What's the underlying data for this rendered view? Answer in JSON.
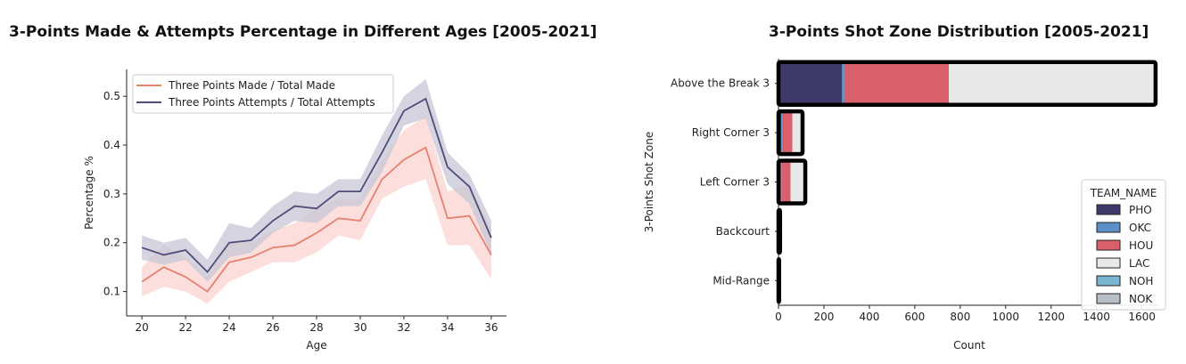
{
  "charts": {
    "left": {
      "title": "3-Points Made & Attempts Percentage in Different Ages [2005-2021]"
    },
    "right": {
      "title": "3-Points Shot Zone Distribution [2005-2021]"
    }
  },
  "colors": {
    "made": "#e8806f",
    "made_band": "#f9c4c0",
    "attempts": "#4f4d77",
    "attempts_band": "#c7c6d6",
    "PHO": "#3d3a6b",
    "OKC": "#5b8fc5",
    "HOU": "#d9606a",
    "LAC": "#e8e8e8",
    "NOH": "#79b4d1",
    "NOK": "#b9bfc6"
  },
  "chart_data": [
    {
      "type": "line",
      "title": "3-Points Made & Attempts Percentage in Different Ages [2005-2021]",
      "xlabel": "Age",
      "ylabel": "Percentage %",
      "xlim": [
        19.3,
        36.7
      ],
      "ylim": [
        0.05,
        0.555
      ],
      "xticks": [
        20,
        22,
        24,
        26,
        28,
        30,
        32,
        34,
        36
      ],
      "yticks": [
        0.1,
        0.2,
        0.3,
        0.4,
        0.5
      ],
      "legend_position": "top-left",
      "x": [
        20,
        21,
        22,
        23,
        24,
        25,
        26,
        27,
        28,
        29,
        30,
        31,
        32,
        33,
        34,
        35,
        36
      ],
      "series": [
        {
          "name": "Three Points Made / Total Made",
          "color_key": "made",
          "values": [
            0.12,
            0.15,
            0.13,
            0.1,
            0.16,
            0.17,
            0.19,
            0.195,
            0.22,
            0.25,
            0.245,
            0.33,
            0.37,
            0.395,
            0.25,
            0.255,
            0.175
          ],
          "ci_low": [
            0.09,
            0.11,
            0.1,
            0.075,
            0.12,
            0.14,
            0.16,
            0.16,
            0.18,
            0.215,
            0.205,
            0.29,
            0.315,
            0.33,
            0.195,
            0.195,
            0.125
          ],
          "ci_high": [
            0.15,
            0.195,
            0.17,
            0.13,
            0.2,
            0.2,
            0.225,
            0.24,
            0.27,
            0.29,
            0.29,
            0.37,
            0.43,
            0.46,
            0.305,
            0.32,
            0.225
          ]
        },
        {
          "name": "Three Points Attempts / Total Attempts",
          "color_key": "attempts",
          "values": [
            0.19,
            0.175,
            0.185,
            0.14,
            0.2,
            0.205,
            0.245,
            0.275,
            0.27,
            0.305,
            0.305,
            0.385,
            0.47,
            0.495,
            0.355,
            0.315,
            0.21
          ],
          "ci_low": [
            0.165,
            0.155,
            0.165,
            0.12,
            0.17,
            0.18,
            0.22,
            0.245,
            0.24,
            0.275,
            0.275,
            0.345,
            0.44,
            0.455,
            0.32,
            0.28,
            0.175
          ],
          "ci_high": [
            0.215,
            0.2,
            0.21,
            0.165,
            0.24,
            0.23,
            0.275,
            0.305,
            0.3,
            0.33,
            0.33,
            0.42,
            0.5,
            0.535,
            0.385,
            0.34,
            0.245
          ]
        }
      ]
    },
    {
      "type": "bar",
      "orientation": "horizontal",
      "stacked": true,
      "title": "3-Points Shot Zone Distribution [2005-2021]",
      "xlabel": "Count",
      "ylabel": "3-Points Shot Zone",
      "xlim": [
        0,
        1680
      ],
      "xticks": [
        0,
        200,
        400,
        600,
        800,
        1000,
        1200,
        1400,
        1600
      ],
      "categories": [
        "Above the Break 3",
        "Right Corner 3",
        "Left Corner 3",
        "Backcourt",
        "Mid-Range"
      ],
      "legend_title": "TEAM_NAME",
      "legend_position": "bottom-right",
      "series": [
        {
          "name": "PHO",
          "color_key": "PHO",
          "values": [
            280,
            12,
            10,
            4,
            2
          ]
        },
        {
          "name": "OKC",
          "color_key": "OKC",
          "values": [
            10,
            4,
            3,
            0,
            0
          ]
        },
        {
          "name": "HOU",
          "color_key": "HOU",
          "values": [
            460,
            45,
            40,
            3,
            1
          ]
        },
        {
          "name": "LAC",
          "color_key": "LAC",
          "values": [
            910,
            45,
            65,
            0,
            0
          ]
        },
        {
          "name": "NOH",
          "color_key": "NOH",
          "values": [
            0,
            0,
            0,
            0,
            0
          ]
        },
        {
          "name": "NOK",
          "color_key": "NOK",
          "values": [
            0,
            0,
            0,
            0,
            0
          ]
        }
      ]
    }
  ]
}
